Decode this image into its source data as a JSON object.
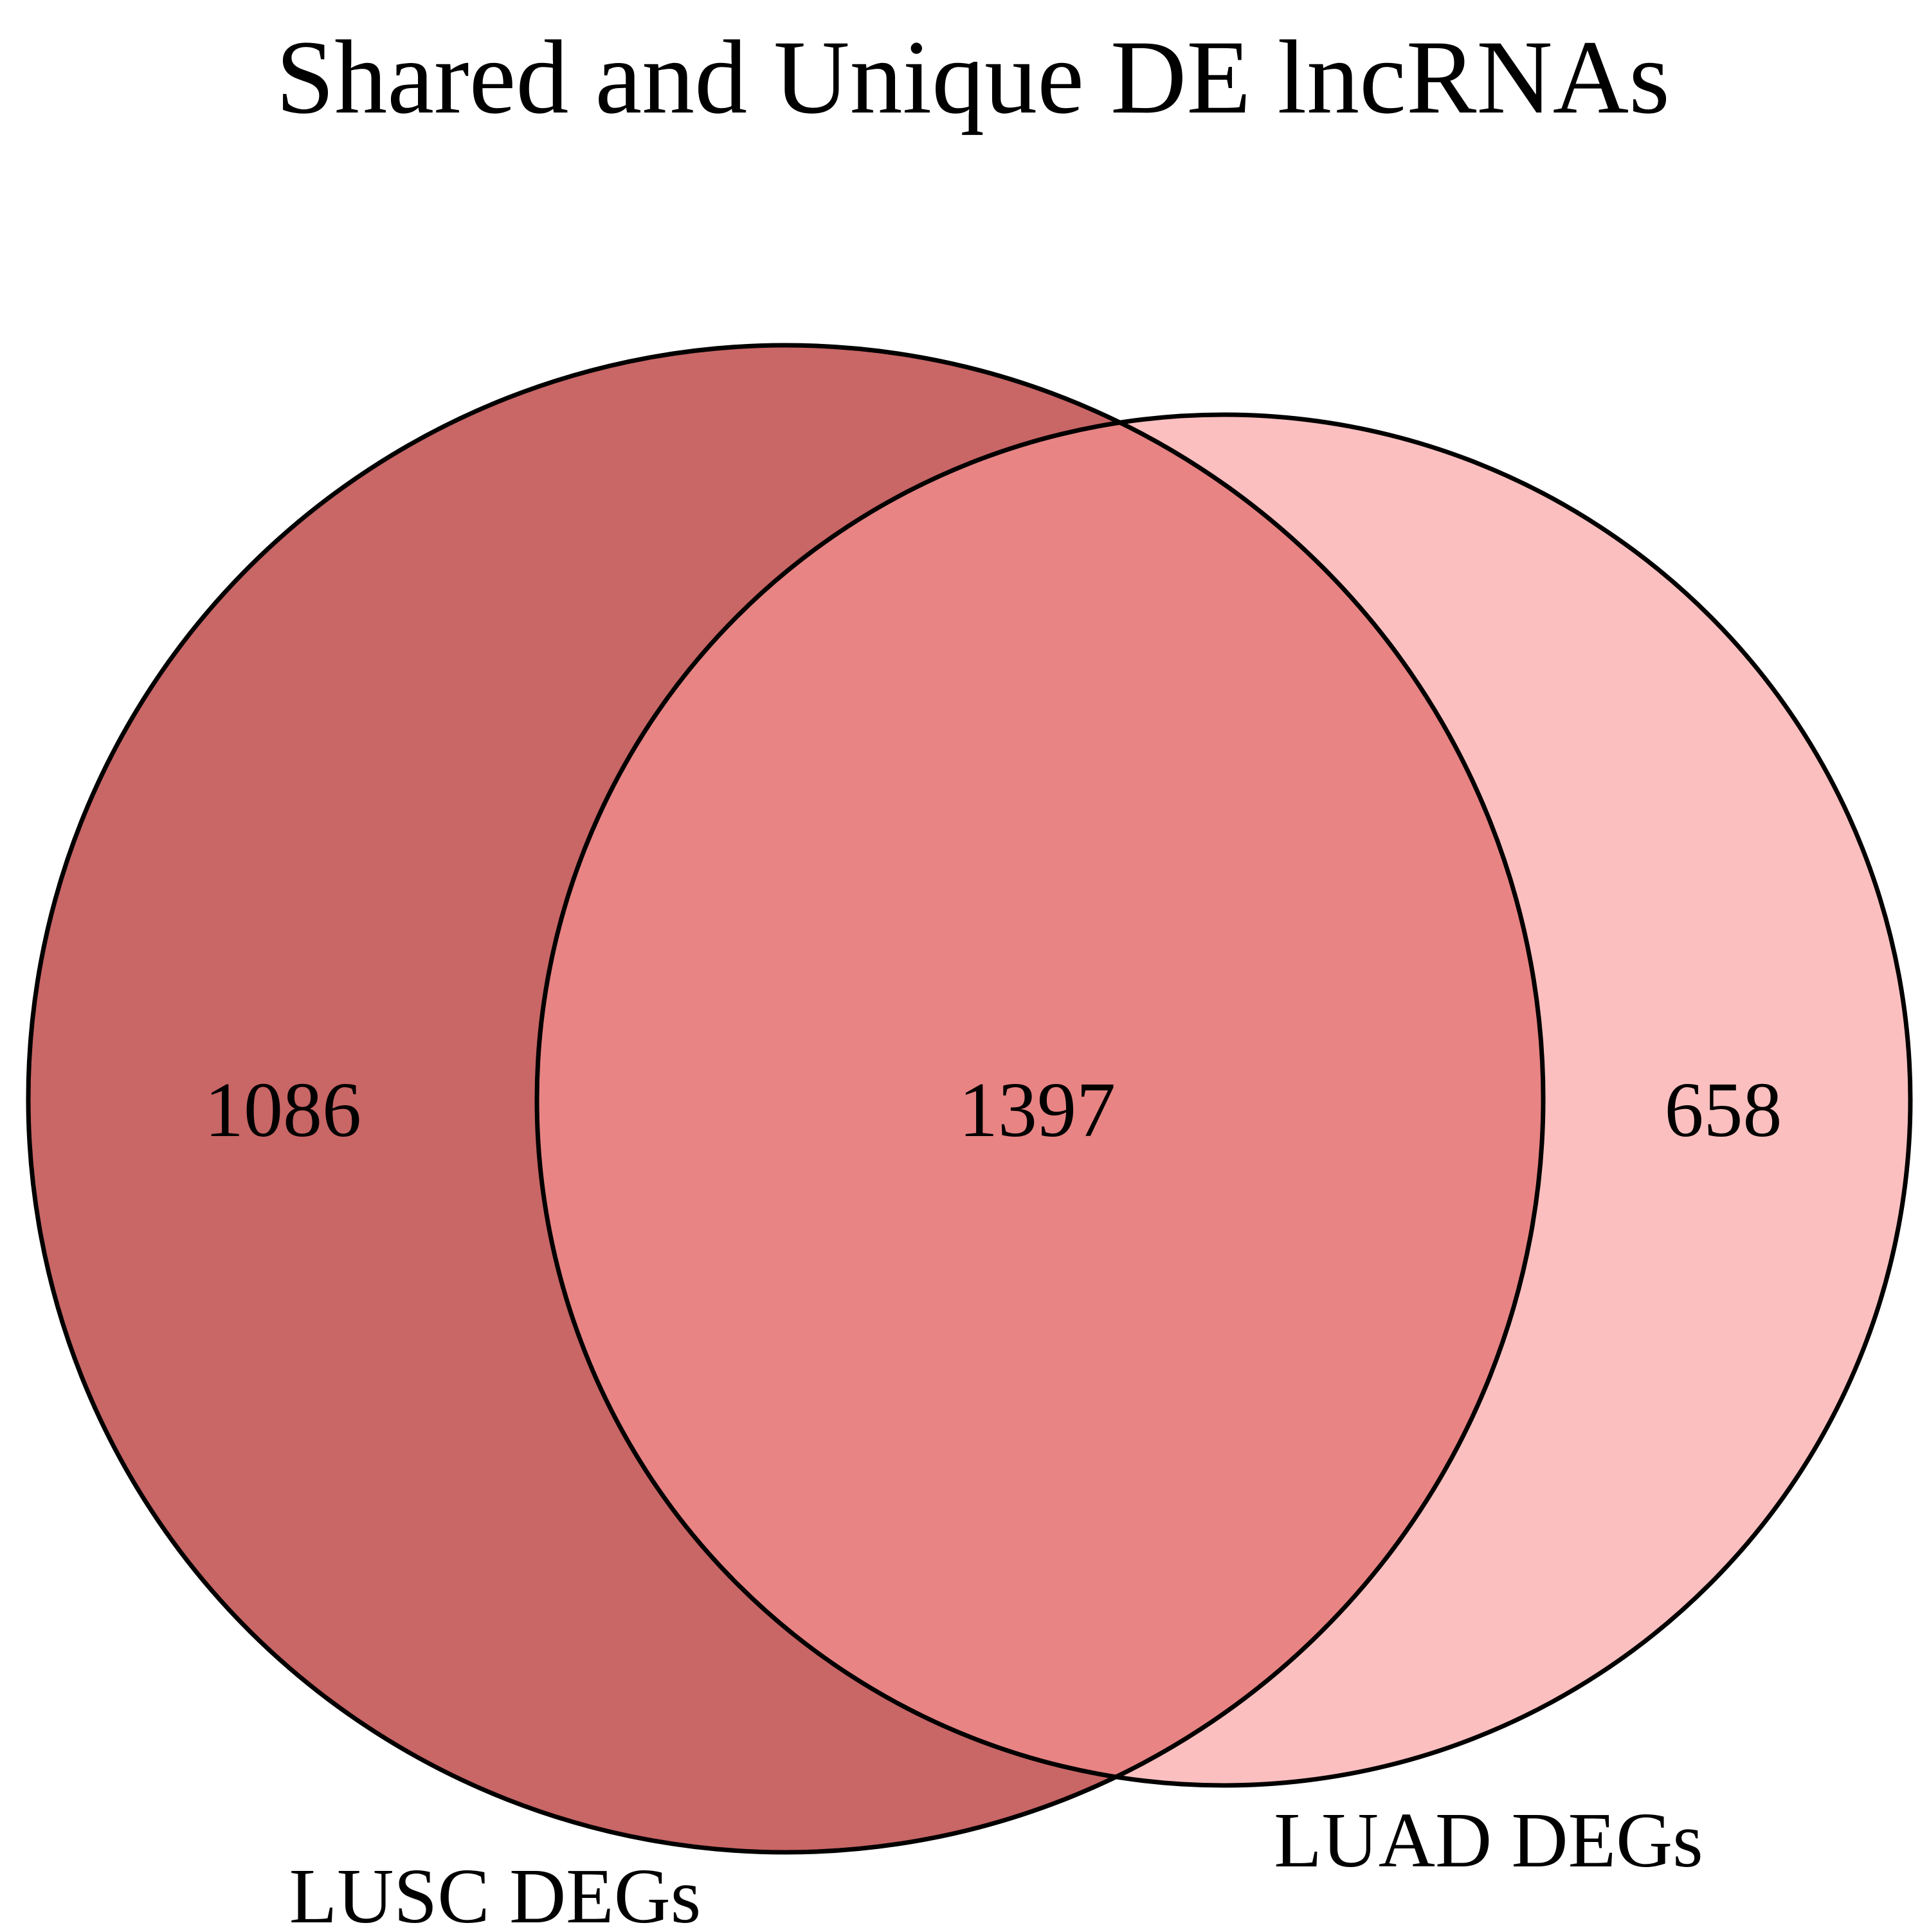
{
  "title": "Shared and Unique DE lncRNAs",
  "sets": [
    {
      "name": "LUSC DEGs",
      "color": "#C96666"
    },
    {
      "name": "LUAD DEGs",
      "color": "#FCBFBF"
    }
  ],
  "overlap_color": "#E88484",
  "regions": {
    "lusc_only": "1086",
    "shared": "1397",
    "luad_only": "658"
  }
}
